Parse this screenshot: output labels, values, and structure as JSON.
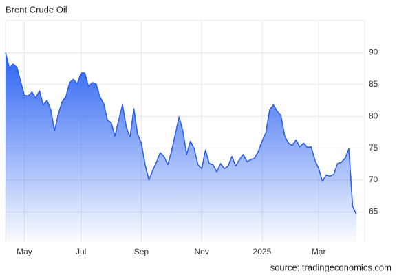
{
  "chart_data": {
    "type": "area",
    "title": "Brent Crude Oil",
    "source": "source: tradingeconomics.com",
    "color": "#2f5fe8",
    "grid": true,
    "categories": [
      null,
      null,
      null,
      null,
      null,
      "May",
      null,
      null,
      null,
      null,
      null,
      null,
      null,
      null,
      null,
      null,
      null,
      null,
      null,
      null,
      "Jul",
      null,
      null,
      null,
      null,
      null,
      null,
      null,
      null,
      null,
      null,
      null,
      null,
      null,
      null,
      null,
      "Sep",
      null,
      null,
      null,
      null,
      null,
      null,
      null,
      null,
      null,
      null,
      null,
      null,
      null,
      null,
      null,
      "Nov",
      null,
      null,
      null,
      null,
      null,
      null,
      null,
      null,
      null,
      null,
      null,
      null,
      null,
      null,
      null,
      "2025",
      null,
      null,
      null,
      null,
      null,
      null,
      null,
      null,
      null,
      null,
      null,
      null,
      null,
      null,
      "Mar",
      null,
      null,
      null,
      null,
      null,
      null,
      null,
      null,
      null,
      null
    ],
    "values": [
      90.0,
      87.6,
      88.2,
      87.7,
      85.5,
      83.3,
      83.2,
      83.8,
      82.9,
      84.0,
      81.8,
      82.5,
      81.0,
      77.7,
      80.4,
      82.3,
      83.1,
      85.3,
      85.8,
      85.1,
      86.8,
      86.8,
      84.7,
      85.3,
      85.1,
      83.1,
      82.0,
      79.4,
      79.0,
      76.9,
      79.4,
      81.8,
      78.3,
      76.7,
      81.2,
      77.2,
      75.8,
      72.4,
      70.0,
      71.5,
      72.8,
      74.3,
      73.7,
      72.4,
      74.5,
      77.2,
      79.9,
      77.7,
      74.0,
      76.1,
      74.9,
      72.4,
      71.8,
      74.7,
      72.6,
      72.4,
      71.3,
      72.6,
      71.8,
      72.2,
      73.7,
      72.2,
      73.2,
      74.0,
      72.9,
      73.2,
      73.4,
      74.5,
      76.1,
      77.4,
      81.0,
      81.8,
      80.8,
      80.1,
      76.9,
      75.8,
      75.4,
      76.3,
      75.2,
      75.8,
      75.1,
      75.2,
      73.1,
      71.8,
      69.8,
      70.8,
      70.6,
      70.9,
      72.6,
      72.8,
      73.4,
      74.9,
      65.9,
      64.6
    ],
    "ylim": [
      60.3,
      95
    ],
    "yticks": [
      65,
      70,
      75,
      80,
      85,
      90
    ]
  }
}
